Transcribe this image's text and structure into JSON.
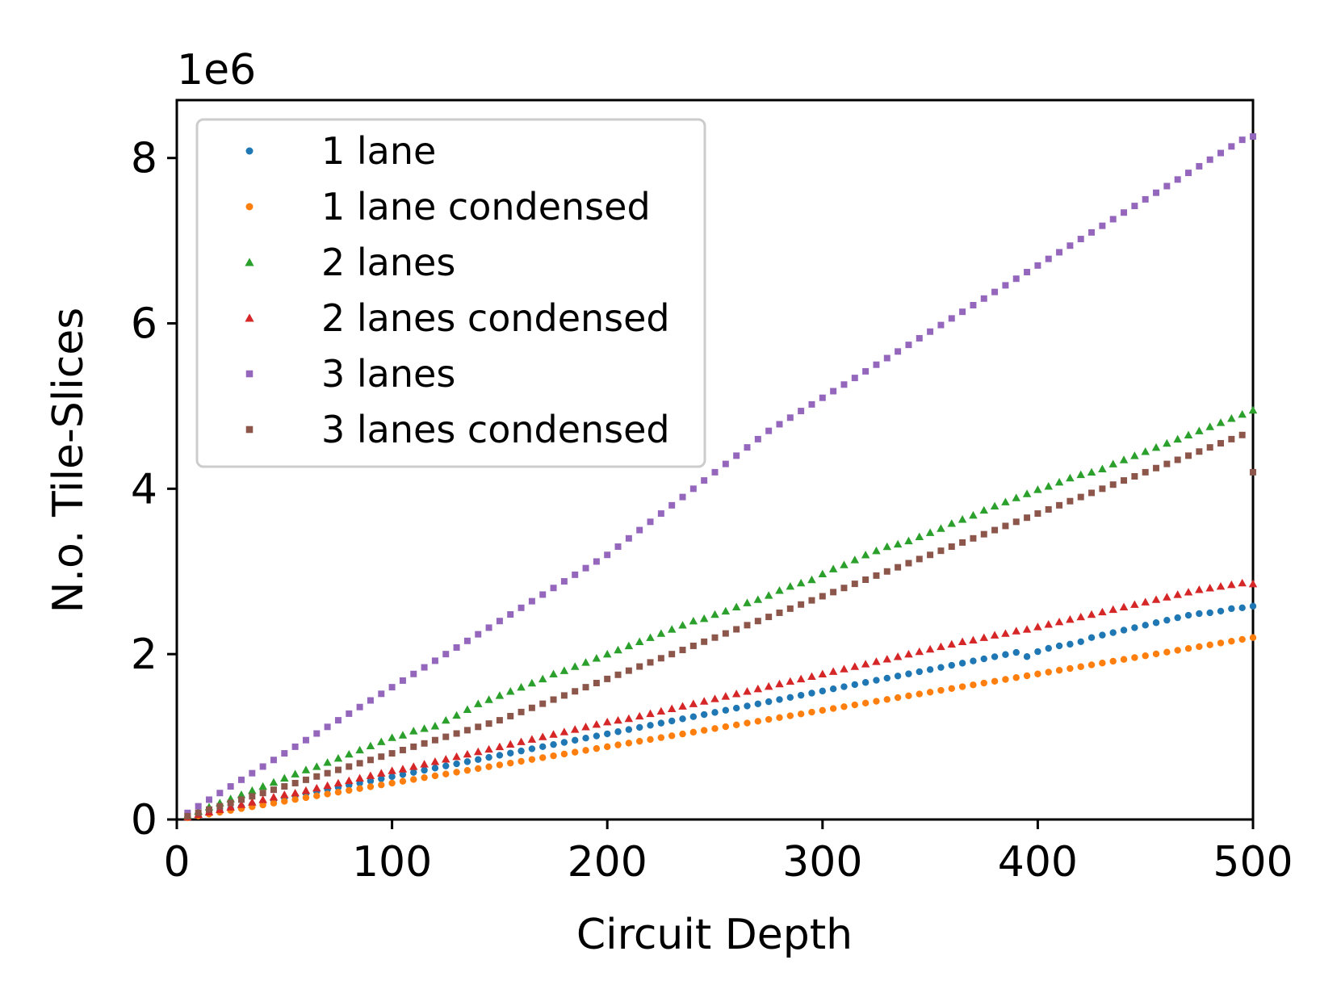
{
  "chart_data": {
    "type": "scatter",
    "xlabel": "Circuit Depth",
    "ylabel": "N.o. Tile-Slices",
    "y_offset_label": "1e6",
    "xlim": [
      0,
      500
    ],
    "ylim": [
      0,
      8.7
    ],
    "y_scale_note": "values in millions (x1e6)",
    "xticks": [
      0,
      100,
      200,
      300,
      400,
      500
    ],
    "yticks": [
      0,
      2,
      4,
      6,
      8
    ],
    "grid": false,
    "legend_position": "upper-left",
    "x": [
      5,
      10,
      15,
      20,
      25,
      30,
      35,
      40,
      45,
      50,
      55,
      60,
      65,
      70,
      75,
      80,
      85,
      90,
      95,
      100,
      105,
      110,
      115,
      120,
      125,
      130,
      135,
      140,
      145,
      150,
      155,
      160,
      165,
      170,
      175,
      180,
      185,
      190,
      195,
      200,
      205,
      210,
      215,
      220,
      225,
      230,
      235,
      240,
      245,
      250,
      255,
      260,
      265,
      270,
      275,
      280,
      285,
      290,
      295,
      300,
      305,
      310,
      315,
      320,
      325,
      330,
      335,
      340,
      345,
      350,
      355,
      360,
      365,
      370,
      375,
      380,
      385,
      390,
      395,
      400,
      405,
      410,
      415,
      420,
      425,
      430,
      435,
      440,
      445,
      450,
      455,
      460,
      465,
      470,
      475,
      480,
      485,
      490,
      495,
      500
    ],
    "series": [
      {
        "name": "1 lane",
        "marker": "circle",
        "color": "#1f77b4",
        "slope": 0.00518,
        "values": [
          0.031,
          0.0518,
          0.0777,
          0.1036,
          0.1295,
          0.1554,
          0.1813,
          0.2072,
          0.2331,
          0.259,
          0.2849,
          0.3108,
          0.3367,
          0.3626,
          0.3885,
          0.4144,
          0.4403,
          0.4662,
          0.4921,
          0.518,
          0.5439,
          0.5698,
          0.5957,
          0.6216,
          0.6475,
          0.6734,
          0.6993,
          0.7252,
          0.7511,
          0.777,
          0.8029,
          0.8288,
          0.8547,
          0.8806,
          0.9065,
          0.9324,
          0.9583,
          0.9842,
          1.0101,
          1.036,
          1.0619,
          1.0878,
          1.1137,
          1.1396,
          1.1655,
          1.1914,
          1.2173,
          1.2432,
          1.2691,
          1.295,
          1.3209,
          1.3468,
          1.3727,
          1.3986,
          1.4245,
          1.4504,
          1.4763,
          1.5022,
          1.5281,
          1.554,
          1.5799,
          1.6058,
          1.6317,
          1.6576,
          1.6835,
          1.7094,
          1.7353,
          1.7612,
          1.7871,
          1.813,
          1.8389,
          1.8648,
          1.8907,
          1.9166,
          1.9425,
          1.9684,
          1.9943,
          2.0202,
          1.97,
          2.03,
          2.07,
          2.1,
          2.12,
          2.15,
          2.2,
          2.23,
          2.26,
          2.29,
          2.32,
          2.35,
          2.38,
          2.41,
          2.44,
          2.47,
          2.49,
          2.5,
          2.52,
          2.55,
          2.56,
          2.58
        ]
      },
      {
        "name": "1 lane condensed",
        "marker": "circle",
        "color": "#ff7f0e",
        "slope": 0.0044,
        "values": [
          0.022,
          0.044,
          0.066,
          0.088,
          0.11,
          0.132,
          0.154,
          0.176,
          0.198,
          0.22,
          0.242,
          0.264,
          0.286,
          0.308,
          0.33,
          0.352,
          0.374,
          0.396,
          0.418,
          0.44,
          0.462,
          0.484,
          0.506,
          0.528,
          0.55,
          0.572,
          0.594,
          0.616,
          0.638,
          0.66,
          0.682,
          0.704,
          0.726,
          0.748,
          0.77,
          0.792,
          0.814,
          0.836,
          0.858,
          0.88,
          0.902,
          0.924,
          0.946,
          0.968,
          0.99,
          1.012,
          1.034,
          1.056,
          1.078,
          1.1,
          1.122,
          1.144,
          1.166,
          1.188,
          1.21,
          1.232,
          1.254,
          1.276,
          1.298,
          1.32,
          1.342,
          1.364,
          1.386,
          1.408,
          1.43,
          1.452,
          1.474,
          1.496,
          1.518,
          1.54,
          1.562,
          1.584,
          1.606,
          1.628,
          1.65,
          1.672,
          1.694,
          1.716,
          1.738,
          1.76,
          1.782,
          1.804,
          1.826,
          1.848,
          1.87,
          1.892,
          1.914,
          1.936,
          1.958,
          1.98,
          2.002,
          2.024,
          2.046,
          2.068,
          2.09,
          2.112,
          2.134,
          2.156,
          2.178,
          2.2
        ]
      },
      {
        "name": "2 lanes",
        "marker": "triangle",
        "color": "#2ca02c",
        "slope": 0.0099,
        "values": [
          0.05,
          0.1,
          0.15,
          0.2,
          0.25,
          0.3,
          0.35,
          0.4,
          0.45,
          0.5,
          0.55,
          0.6,
          0.64,
          0.69,
          0.74,
          0.79,
          0.84,
          0.89,
          0.94,
          0.99,
          1.02,
          1.07,
          1.1,
          1.13,
          1.2,
          1.26,
          1.33,
          1.4,
          1.45,
          1.5,
          1.55,
          1.6,
          1.65,
          1.7,
          1.76,
          1.8,
          1.85,
          1.9,
          1.95,
          2.0,
          2.05,
          2.1,
          2.15,
          2.2,
          2.25,
          2.3,
          2.35,
          2.4,
          2.43,
          2.48,
          2.52,
          2.57,
          2.62,
          2.66,
          2.71,
          2.77,
          2.82,
          2.86,
          2.9,
          2.97,
          3.03,
          3.08,
          3.14,
          3.2,
          3.25,
          3.3,
          3.33,
          3.37,
          3.42,
          3.47,
          3.52,
          3.58,
          3.63,
          3.68,
          3.74,
          3.79,
          3.84,
          3.89,
          3.94,
          3.99,
          4.03,
          4.08,
          4.13,
          4.17,
          4.2,
          4.24,
          4.3,
          4.35,
          4.4,
          4.45,
          4.5,
          4.55,
          4.6,
          4.65,
          4.7,
          4.75,
          4.8,
          4.85,
          4.9,
          4.95
        ]
      },
      {
        "name": "2 lanes condensed",
        "marker": "triangle",
        "color": "#d62728",
        "slope": 0.00566,
        "values": [
          0.03,
          0.06,
          0.09,
          0.12,
          0.15,
          0.18,
          0.21,
          0.24,
          0.27,
          0.3,
          0.32,
          0.35,
          0.38,
          0.41,
          0.44,
          0.47,
          0.5,
          0.53,
          0.56,
          0.59,
          0.61,
          0.64,
          0.67,
          0.7,
          0.73,
          0.76,
          0.79,
          0.82,
          0.85,
          0.88,
          0.91,
          0.94,
          0.97,
          1.0,
          1.03,
          1.06,
          1.09,
          1.12,
          1.15,
          1.18,
          1.2,
          1.22,
          1.25,
          1.28,
          1.31,
          1.34,
          1.37,
          1.4,
          1.43,
          1.46,
          1.49,
          1.52,
          1.55,
          1.58,
          1.61,
          1.64,
          1.67,
          1.7,
          1.73,
          1.76,
          1.79,
          1.82,
          1.85,
          1.88,
          1.91,
          1.94,
          1.97,
          2.0,
          2.03,
          2.06,
          2.09,
          2.12,
          2.15,
          2.17,
          2.2,
          2.23,
          2.25,
          2.28,
          2.3,
          2.33,
          2.36,
          2.39,
          2.42,
          2.45,
          2.48,
          2.51,
          2.54,
          2.57,
          2.6,
          2.63,
          2.66,
          2.69,
          2.72,
          2.75,
          2.78,
          2.8,
          2.82,
          2.84,
          2.86,
          2.85
        ]
      },
      {
        "name": "3 lanes",
        "marker": "square",
        "color": "#9467bd",
        "slope": 0.0166,
        "values": [
          0.08,
          0.16,
          0.24,
          0.32,
          0.4,
          0.48,
          0.56,
          0.64,
          0.72,
          0.8,
          0.88,
          0.96,
          1.04,
          1.12,
          1.2,
          1.28,
          1.36,
          1.44,
          1.52,
          1.6,
          1.68,
          1.76,
          1.84,
          1.92,
          2.0,
          2.08,
          2.16,
          2.24,
          2.32,
          2.4,
          2.48,
          2.56,
          2.64,
          2.72,
          2.8,
          2.88,
          2.96,
          3.04,
          3.12,
          3.2,
          3.3,
          3.4,
          3.5,
          3.6,
          3.7,
          3.8,
          3.9,
          4.0,
          4.1,
          4.2,
          4.3,
          4.4,
          4.5,
          4.6,
          4.7,
          4.78,
          4.86,
          4.94,
          5.02,
          5.1,
          5.18,
          5.26,
          5.34,
          5.42,
          5.5,
          5.58,
          5.66,
          5.74,
          5.82,
          5.9,
          5.98,
          6.06,
          6.14,
          6.22,
          6.3,
          6.38,
          6.46,
          6.54,
          6.62,
          6.7,
          6.78,
          6.86,
          6.94,
          7.02,
          7.1,
          7.18,
          7.26,
          7.34,
          7.42,
          7.5,
          7.58,
          7.66,
          7.74,
          7.82,
          7.9,
          7.98,
          8.06,
          8.14,
          8.22,
          8.26
        ]
      },
      {
        "name": "3 lanes condensed",
        "marker": "square",
        "color": "#8c564b",
        "slope": 0.0084,
        "values": [
          0.04,
          0.08,
          0.12,
          0.16,
          0.2,
          0.24,
          0.28,
          0.32,
          0.36,
          0.4,
          0.44,
          0.48,
          0.52,
          0.56,
          0.6,
          0.64,
          0.68,
          0.72,
          0.76,
          0.8,
          0.84,
          0.88,
          0.92,
          0.96,
          1.0,
          1.04,
          1.08,
          1.12,
          1.16,
          1.2,
          1.25,
          1.3,
          1.35,
          1.4,
          1.45,
          1.5,
          1.55,
          1.6,
          1.65,
          1.7,
          1.75,
          1.8,
          1.85,
          1.9,
          1.95,
          2.0,
          2.05,
          2.1,
          2.15,
          2.2,
          2.25,
          2.3,
          2.35,
          2.4,
          2.45,
          2.5,
          2.55,
          2.6,
          2.65,
          2.7,
          2.75,
          2.8,
          2.85,
          2.9,
          2.95,
          3.0,
          3.05,
          3.1,
          3.15,
          3.2,
          3.25,
          3.3,
          3.35,
          3.4,
          3.45,
          3.5,
          3.55,
          3.6,
          3.65,
          3.7,
          3.75,
          3.8,
          3.85,
          3.9,
          3.95,
          4.0,
          4.05,
          4.1,
          4.15,
          4.2,
          4.25,
          4.3,
          4.35,
          4.4,
          4.45,
          4.5,
          4.55,
          4.6,
          4.65,
          4.2
        ]
      }
    ]
  }
}
